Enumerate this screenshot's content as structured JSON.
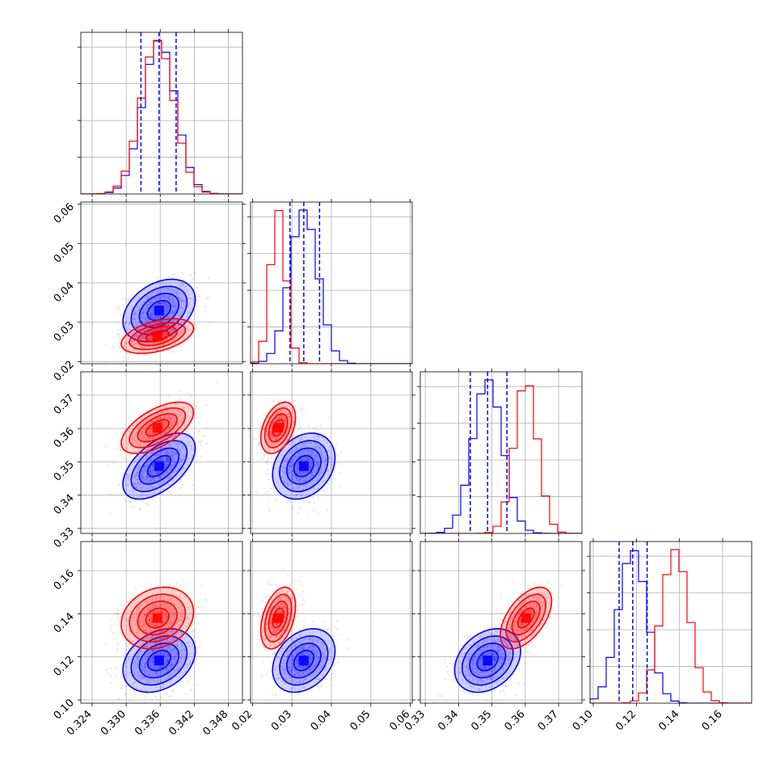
{
  "chart_data": {
    "type": "corner",
    "series": [
      {
        "name": "",
        "color": "#0000ff",
        "mean": [
          0.3358,
          0.033,
          0.3487,
          0.1183
        ],
        "std": [
          0.0029,
          0.0036,
          0.0045,
          0.0067
        ],
        "corr": {
          "1_0": 0.35,
          "2_0": 0.55,
          "2_1": 0.25,
          "3_0": 0.3,
          "3_1": 0.3,
          "3_2": 0.3
        },
        "quantiles": [
          [
            0.3326,
            0.3358,
            0.3388
          ],
          [
            0.0295,
            0.033,
            0.037
          ],
          [
            0.3435,
            0.3487,
            0.3545
          ],
          [
            0.112,
            0.1183,
            0.125
          ]
        ]
      },
      {
        "name": "",
        "color": "#ff0000",
        "mean": [
          0.3355,
          0.0265,
          0.3602,
          0.138
        ],
        "std": [
          0.0029,
          0.002,
          0.0035,
          0.0065
        ],
        "corr": {
          "1_0": 0.45,
          "2_0": 0.6,
          "2_1": 0.4,
          "3_0": 0.2,
          "3_1": 0.4,
          "3_2": 0.55
        }
      }
    ],
    "dims": [
      {
        "ticks": [
          0.324,
          0.33,
          0.336,
          0.342,
          0.348
        ],
        "labels": [
          "0.324",
          "0.330",
          "0.336",
          "0.342",
          "0.348"
        ],
        "range": [
          0.322,
          0.3505
        ]
      },
      {
        "ticks": [
          0.02,
          0.03,
          0.04,
          0.05,
          0.06
        ],
        "labels": [
          "0.02",
          "0.03",
          "0.04",
          "0.05",
          "0.06"
        ],
        "range": [
          0.0195,
          0.0605
        ]
      },
      {
        "ticks": [
          0.33,
          0.34,
          0.35,
          0.36,
          0.37
        ],
        "labels": [
          "0.33",
          "0.34",
          "0.35",
          "0.36",
          "0.37"
        ],
        "range": [
          0.3285,
          0.377
        ]
      },
      {
        "ticks": [
          0.1,
          0.12,
          0.14,
          0.16
        ],
        "labels": [
          "0.10",
          "0.12",
          "0.14",
          "0.16"
        ],
        "range": [
          0.0985,
          0.1735
        ]
      }
    ],
    "grid": true
  }
}
